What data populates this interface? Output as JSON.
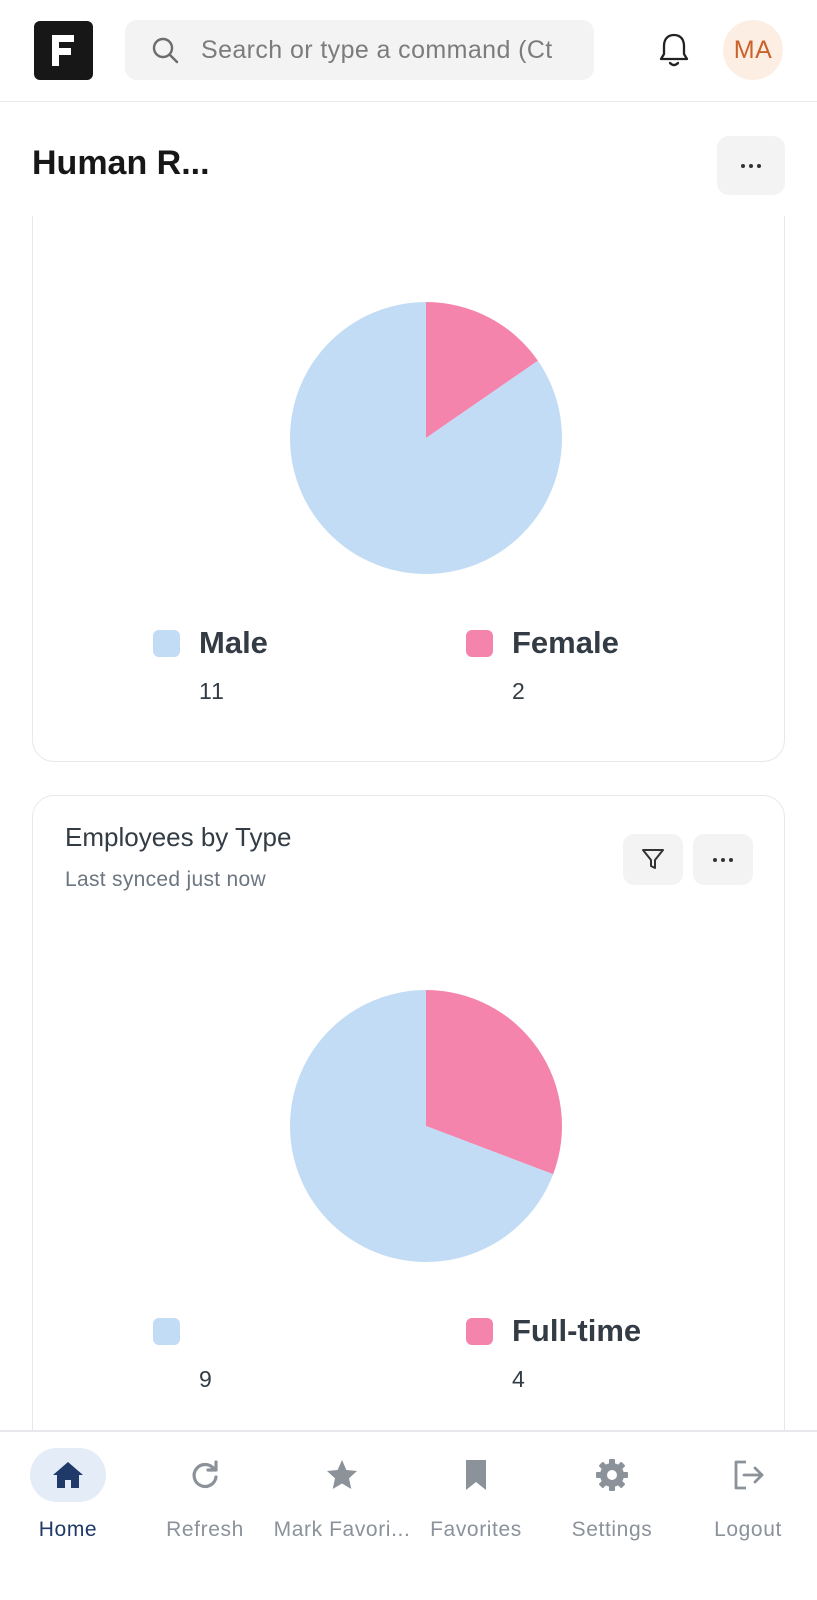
{
  "header": {
    "search_placeholder": "Search or type a command (Ct",
    "avatar_initials": "MA"
  },
  "page": {
    "title": "Human R...",
    "accent_color": "#1f3a68"
  },
  "charts": [
    {
      "title": "",
      "subtitle": "",
      "legend": [
        {
          "label": "Male",
          "value": "11"
        },
        {
          "label": "Female",
          "value": "2"
        }
      ]
    },
    {
      "title": "Employees by Type",
      "subtitle": "Last synced just now",
      "legend": [
        {
          "label": "",
          "value": "9"
        },
        {
          "label": "Full-time",
          "value": "4"
        }
      ]
    }
  ],
  "chart_data": [
    {
      "type": "pie",
      "categories": [
        "Male",
        "Female"
      ],
      "values": [
        11,
        2
      ],
      "colors": [
        "#c2dcf5",
        "#f584ad"
      ]
    },
    {
      "type": "pie",
      "title": "Employees by Type",
      "categories": [
        "",
        "Full-time"
      ],
      "values": [
        9,
        4
      ],
      "colors": [
        "#c2dcf5",
        "#f584ad"
      ]
    }
  ],
  "bottom_nav": [
    {
      "label": "Home",
      "icon": "home-icon",
      "active": true
    },
    {
      "label": "Refresh",
      "icon": "refresh-icon",
      "active": false
    },
    {
      "label": "Mark Favori...",
      "icon": "star-icon",
      "active": false
    },
    {
      "label": "Favorites",
      "icon": "bookmark-icon",
      "active": false
    },
    {
      "label": "Settings",
      "icon": "gear-icon",
      "active": false
    },
    {
      "label": "Logout",
      "icon": "logout-icon",
      "active": false
    }
  ]
}
